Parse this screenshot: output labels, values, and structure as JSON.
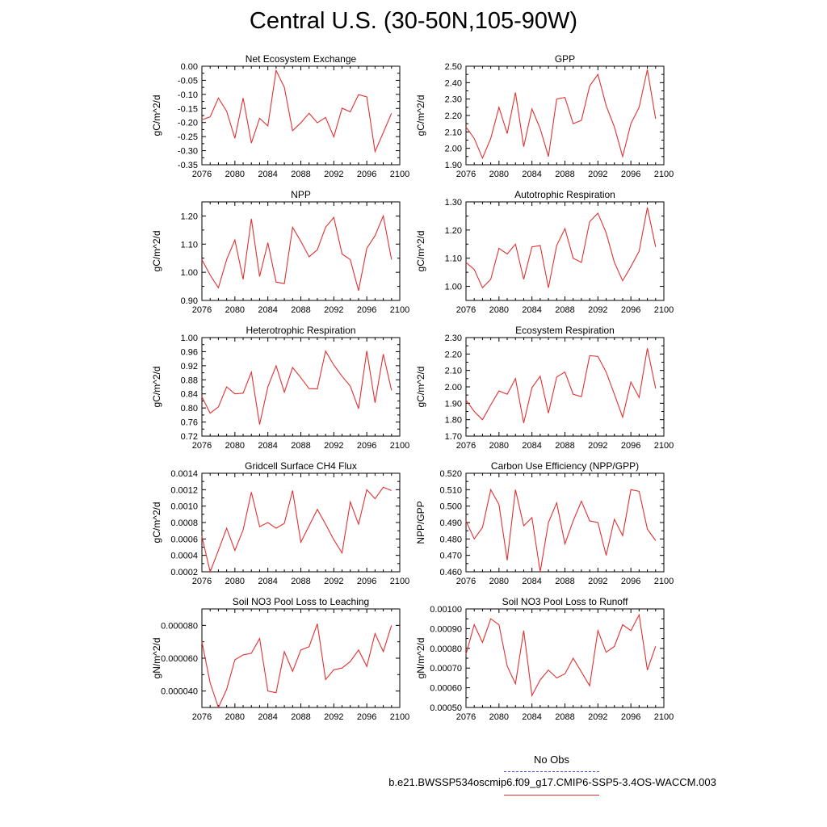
{
  "title": "Central U.S. (30-50N,105-90W)",
  "legend": {
    "obs_label": "No Obs",
    "case_label": "b.e21.BWSSP534oscmip6.f09_g17.CMIP6-SSP5-3.4OS-WACCM.003",
    "obs_color": "#4a4ad0",
    "case_color": "#e33030"
  },
  "chart_data": [
    {
      "type": "line",
      "title": "Net Ecosystem Exchange",
      "ylabel": "gC/m^2/d",
      "xlim": [
        2076,
        2100
      ],
      "xticks": [
        "2076",
        "2080",
        "2084",
        "2088",
        "2092",
        "2096",
        "2100"
      ],
      "ylim": [
        -0.35,
        0.0
      ],
      "yticks": [
        "0.00",
        "-0.05",
        "-0.10",
        "-0.15",
        "-0.20",
        "-0.25",
        "-0.30",
        "-0.35"
      ],
      "ytick_values": [
        0.0,
        -0.05,
        -0.1,
        -0.15,
        -0.2,
        -0.25,
        -0.3,
        -0.35
      ],
      "x": [
        2076,
        2077,
        2078,
        2079,
        2080,
        2081,
        2082,
        2083,
        2084,
        2085,
        2086,
        2087,
        2088,
        2089,
        2090,
        2091,
        2092,
        2093,
        2094,
        2095,
        2096,
        2097,
        2098,
        2099
      ],
      "series": [
        {
          "color": "#e33030",
          "values": [
            -0.19,
            -0.18,
            -0.113,
            -0.16,
            -0.256,
            -0.113,
            -0.273,
            -0.185,
            -0.212,
            -0.015,
            -0.075,
            -0.229,
            -0.201,
            -0.167,
            -0.201,
            -0.182,
            -0.251,
            -0.149,
            -0.162,
            -0.101,
            -0.109,
            -0.303,
            -0.236,
            -0.167
          ]
        }
      ]
    },
    {
      "type": "line",
      "title": "GPP",
      "ylabel": "gC/m^2/d",
      "xlim": [
        2076,
        2100
      ],
      "xticks": [
        "2076",
        "2080",
        "2084",
        "2088",
        "2092",
        "2096",
        "2100"
      ],
      "ylim": [
        1.9,
        2.5
      ],
      "yticks": [
        "2.50",
        "2.40",
        "2.30",
        "2.20",
        "2.10",
        "2.00",
        "1.90"
      ],
      "ytick_values": [
        2.5,
        2.4,
        2.3,
        2.2,
        2.1,
        2.0,
        1.9
      ],
      "x": [
        2076,
        2077,
        2078,
        2079,
        2080,
        2081,
        2082,
        2083,
        2084,
        2085,
        2086,
        2087,
        2088,
        2089,
        2090,
        2091,
        2092,
        2093,
        2094,
        2095,
        2096,
        2097,
        2098,
        2099
      ],
      "series": [
        {
          "color": "#e33030",
          "values": [
            2.13,
            2.06,
            1.94,
            2.06,
            2.25,
            2.09,
            2.34,
            2.01,
            2.24,
            2.12,
            1.95,
            2.3,
            2.31,
            2.15,
            2.17,
            2.38,
            2.45,
            2.26,
            2.13,
            1.95,
            2.15,
            2.25,
            2.48,
            2.18
          ]
        }
      ]
    },
    {
      "type": "line",
      "title": "NPP",
      "ylabel": "gC/m^2/d",
      "xlim": [
        2076,
        2100
      ],
      "xticks": [
        "2076",
        "2080",
        "2084",
        "2088",
        "2092",
        "2096",
        "2100"
      ],
      "ylim": [
        0.9,
        1.25
      ],
      "yticks": [
        "1.20",
        "1.10",
        "1.00",
        "0.90"
      ],
      "ytick_values": [
        1.2,
        1.1,
        1.0,
        0.9
      ],
      "x": [
        2076,
        2077,
        2078,
        2079,
        2080,
        2081,
        2082,
        2083,
        2084,
        2085,
        2086,
        2087,
        2088,
        2089,
        2090,
        2091,
        2092,
        2093,
        2094,
        2095,
        2096,
        2097,
        2098,
        2099
      ],
      "series": [
        {
          "color": "#e33030",
          "values": [
            1.045,
            0.99,
            0.945,
            1.045,
            1.115,
            0.975,
            1.19,
            0.985,
            1.105,
            0.965,
            0.96,
            1.16,
            1.11,
            1.055,
            1.08,
            1.16,
            1.195,
            1.065,
            1.045,
            0.935,
            1.085,
            1.13,
            1.2,
            1.045
          ]
        }
      ]
    },
    {
      "type": "line",
      "title": "Autotrophic Respiration",
      "ylabel": "gC/m^2/d",
      "xlim": [
        2076,
        2100
      ],
      "xticks": [
        "2076",
        "2080",
        "2084",
        "2088",
        "2092",
        "2096",
        "2100"
      ],
      "ylim": [
        0.95,
        1.3
      ],
      "yticks": [
        "1.30",
        "1.20",
        "1.10",
        "1.00"
      ],
      "ytick_values": [
        1.3,
        1.2,
        1.1,
        1.0
      ],
      "x": [
        2076,
        2077,
        2078,
        2079,
        2080,
        2081,
        2082,
        2083,
        2084,
        2085,
        2086,
        2087,
        2088,
        2089,
        2090,
        2091,
        2092,
        2093,
        2094,
        2095,
        2096,
        2097,
        2098,
        2099
      ],
      "series": [
        {
          "color": "#e33030",
          "values": [
            1.085,
            1.06,
            0.995,
            1.025,
            1.135,
            1.115,
            1.15,
            1.025,
            1.14,
            1.145,
            0.995,
            1.145,
            1.205,
            1.1,
            1.085,
            1.23,
            1.26,
            1.19,
            1.085,
            1.02,
            1.07,
            1.125,
            1.28,
            1.14
          ]
        }
      ]
    },
    {
      "type": "line",
      "title": "Heterotrophic Respiration",
      "ylabel": "gC/m^2/d",
      "xlim": [
        2076,
        2100
      ],
      "xticks": [
        "2076",
        "2080",
        "2084",
        "2088",
        "2092",
        "2096",
        "2100"
      ],
      "ylim": [
        0.72,
        1.0
      ],
      "yticks": [
        "1.00",
        "0.96",
        "0.92",
        "0.88",
        "0.84",
        "0.80",
        "0.76",
        "0.72"
      ],
      "ytick_values": [
        1.0,
        0.96,
        0.92,
        0.88,
        0.84,
        0.8,
        0.76,
        0.72
      ],
      "x": [
        2076,
        2077,
        2078,
        2079,
        2080,
        2081,
        2082,
        2083,
        2084,
        2085,
        2086,
        2087,
        2088,
        2089,
        2090,
        2091,
        2092,
        2093,
        2094,
        2095,
        2096,
        2097,
        2098,
        2099
      ],
      "series": [
        {
          "color": "#e33030",
          "values": [
            0.832,
            0.785,
            0.803,
            0.86,
            0.84,
            0.842,
            0.902,
            0.753,
            0.86,
            0.92,
            0.845,
            0.915,
            0.886,
            0.855,
            0.854,
            0.962,
            0.922,
            0.89,
            0.862,
            0.798,
            0.962,
            0.815,
            0.953,
            0.85
          ]
        }
      ]
    },
    {
      "type": "line",
      "title": "Ecosystem Respiration",
      "ylabel": "gC/m^2/d",
      "xlim": [
        2076,
        2100
      ],
      "xticks": [
        "2076",
        "2080",
        "2084",
        "2088",
        "2092",
        "2096",
        "2100"
      ],
      "ylim": [
        1.7,
        2.3
      ],
      "yticks": [
        "2.30",
        "2.20",
        "2.10",
        "2.00",
        "1.90",
        "1.80",
        "1.70"
      ],
      "ytick_values": [
        2.3,
        2.2,
        2.1,
        2.0,
        1.9,
        1.8,
        1.7
      ],
      "x": [
        2076,
        2077,
        2078,
        2079,
        2080,
        2081,
        2082,
        2083,
        2084,
        2085,
        2086,
        2087,
        2088,
        2089,
        2090,
        2091,
        2092,
        2093,
        2094,
        2095,
        2096,
        2097,
        2098,
        2099
      ],
      "series": [
        {
          "color": "#e33030",
          "values": [
            1.92,
            1.85,
            1.8,
            1.89,
            1.975,
            1.955,
            2.05,
            1.78,
            1.995,
            2.065,
            1.84,
            2.06,
            2.09,
            1.955,
            1.94,
            2.19,
            2.185,
            2.09,
            1.955,
            1.815,
            2.03,
            1.935,
            2.235,
            1.99
          ]
        }
      ]
    },
    {
      "type": "line",
      "title": "Gridcell Surface CH4 Flux",
      "ylabel": "gC/m^2/d",
      "xlim": [
        2076,
        2100
      ],
      "xticks": [
        "2076",
        "2080",
        "2084",
        "2088",
        "2092",
        "2096",
        "2100"
      ],
      "ylim": [
        0.0002,
        0.0014
      ],
      "yticks": [
        "0.0014",
        "0.0012",
        "0.0010",
        "0.0008",
        "0.0006",
        "0.0004",
        "0.0002"
      ],
      "ytick_values": [
        0.0014,
        0.0012,
        0.001,
        0.0008,
        0.0006,
        0.0004,
        0.0002
      ],
      "x": [
        2076,
        2077,
        2078,
        2079,
        2080,
        2081,
        2082,
        2083,
        2084,
        2085,
        2086,
        2087,
        2088,
        2089,
        2090,
        2091,
        2092,
        2093,
        2094,
        2095,
        2096,
        2097,
        2098,
        2099
      ],
      "series": [
        {
          "color": "#e33030",
          "values": [
            0.00063,
            0.0002,
            0.00046,
            0.00073,
            0.00046,
            0.00071,
            0.00117,
            0.00075,
            0.0008,
            0.00073,
            0.00079,
            0.00119,
            0.00056,
            0.00076,
            0.00096,
            0.00078,
            0.00059,
            0.00043,
            0.00105,
            0.00078,
            0.0012,
            0.00109,
            0.00123,
            0.00119
          ]
        }
      ]
    },
    {
      "type": "line",
      "title": "Carbon Use Efficiency (NPP/GPP)",
      "ylabel": "NPP/GPP",
      "xlim": [
        2076,
        2100
      ],
      "xticks": [
        "2076",
        "2080",
        "2084",
        "2088",
        "2092",
        "2096",
        "2100"
      ],
      "ylim": [
        0.46,
        0.52
      ],
      "yticks": [
        "0.520",
        "0.510",
        "0.500",
        "0.490",
        "0.480",
        "0.470",
        "0.460"
      ],
      "ytick_values": [
        0.52,
        0.51,
        0.5,
        0.49,
        0.48,
        0.47,
        0.46
      ],
      "x": [
        2076,
        2077,
        2078,
        2079,
        2080,
        2081,
        2082,
        2083,
        2084,
        2085,
        2086,
        2087,
        2088,
        2089,
        2090,
        2091,
        2092,
        2093,
        2094,
        2095,
        2096,
        2097,
        2098,
        2099
      ],
      "series": [
        {
          "color": "#e33030",
          "values": [
            0.491,
            0.48,
            0.487,
            0.51,
            0.501,
            0.467,
            0.51,
            0.488,
            0.493,
            0.46,
            0.49,
            0.502,
            0.477,
            0.491,
            0.503,
            0.491,
            0.49,
            0.47,
            0.492,
            0.482,
            0.51,
            0.509,
            0.486,
            0.479
          ]
        }
      ]
    },
    {
      "type": "line",
      "title": "Soil NO3 Pool Loss to Leaching",
      "ylabel": "gN/m^2/d",
      "xlim": [
        2076,
        2100
      ],
      "xticks": [
        "2076",
        "2080",
        "2084",
        "2088",
        "2092",
        "2096",
        "2100"
      ],
      "ylim": [
        3e-05,
        9e-05
      ],
      "yticks": [
        "0.000080",
        "0.000060",
        "0.000040"
      ],
      "ytick_values": [
        8e-05,
        6e-05,
        4e-05
      ],
      "x": [
        2076,
        2077,
        2078,
        2079,
        2080,
        2081,
        2082,
        2083,
        2084,
        2085,
        2086,
        2087,
        2088,
        2089,
        2090,
        2091,
        2092,
        2093,
        2094,
        2095,
        2096,
        2097,
        2098,
        2099
      ],
      "series": [
        {
          "color": "#e33030",
          "values": [
            7e-05,
            4.5e-05,
            3e-05,
            4.1e-05,
            5.9e-05,
            6.2e-05,
            6.3e-05,
            7.2e-05,
            4e-05,
            3.9e-05,
            6.4e-05,
            5.2e-05,
            6.5e-05,
            6.7e-05,
            8.1e-05,
            4.7e-05,
            5.3e-05,
            5.4e-05,
            5.8e-05,
            6.5e-05,
            5.5e-05,
            7.5e-05,
            6.4e-05,
            8e-05
          ]
        }
      ]
    },
    {
      "type": "line",
      "title": "Soil NO3 Pool Loss to Runoff",
      "ylabel": "gN/m^2/d",
      "xlim": [
        2076,
        2100
      ],
      "xticks": [
        "2076",
        "2080",
        "2084",
        "2088",
        "2092",
        "2096",
        "2100"
      ],
      "ylim": [
        0.0005,
        0.001
      ],
      "yticks": [
        "0.00100",
        "0.00090",
        "0.00080",
        "0.00070",
        "0.00060",
        "0.00050"
      ],
      "ytick_values": [
        0.001,
        0.0009,
        0.0008,
        0.0007,
        0.0006,
        0.0005
      ],
      "x": [
        2076,
        2077,
        2078,
        2079,
        2080,
        2081,
        2082,
        2083,
        2084,
        2085,
        2086,
        2087,
        2088,
        2089,
        2090,
        2091,
        2092,
        2093,
        2094,
        2095,
        2096,
        2097,
        2098,
        2099
      ],
      "series": [
        {
          "color": "#e33030",
          "values": [
            0.00077,
            0.00092,
            0.00083,
            0.00095,
            0.00092,
            0.00071,
            0.00062,
            0.00089,
            0.00056,
            0.00064,
            0.00069,
            0.00065,
            0.00067,
            0.00075,
            0.00068,
            0.00061,
            0.00089,
            0.00078,
            0.00081,
            0.00092,
            0.00089,
            0.00097,
            0.00069,
            0.00081
          ]
        }
      ]
    }
  ]
}
